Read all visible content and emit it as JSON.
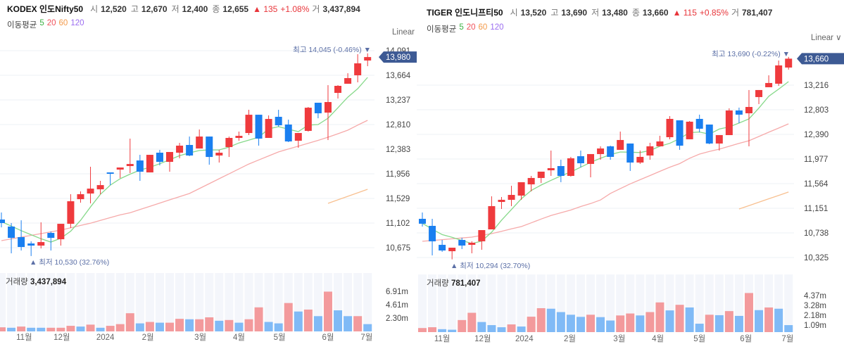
{
  "panels": [
    {
      "title": "KODEX 인도Nifty50",
      "open_label": "시",
      "open": "12,520",
      "high_label": "고",
      "high": "12,670",
      "low_label": "저",
      "low": "12,400",
      "close_label": "종",
      "close": "12,655",
      "change": "▲ 135",
      "change_pct": "+1.08%",
      "volume_label": "거",
      "volume": "3,437,894",
      "ma_label": "이동평균",
      "ma_periods": [
        "5",
        "20",
        "60",
        "120"
      ],
      "scale_mode": "Linear",
      "current_price": "13,980",
      "max_annotation": "최고 14,045 (-0.46%) ▼",
      "min_annotation": "▲ 최저 10,530 (32.76%)",
      "volume_title": "거래량",
      "volume_value": "3,437,894",
      "price_ticks": [
        "14,091",
        "13,664",
        "13,237",
        "12,810",
        "12,383",
        "11,956",
        "11,529",
        "11,102",
        "10,675"
      ],
      "volume_ticks": [
        "6.91m",
        "4.61m",
        "2.30m"
      ],
      "x_labels": [
        {
          "text": "11월",
          "at": 2.3
        },
        {
          "text": "12월",
          "at": 6.1
        },
        {
          "text": "2024",
          "at": 10.5
        },
        {
          "text": "2월",
          "at": 14.8
        },
        {
          "text": "3월",
          "at": 20.1
        },
        {
          "text": "4월",
          "at": 24
        },
        {
          "text": "5월",
          "at": 28.1
        },
        {
          "text": "6월",
          "at": 33
        },
        {
          "text": "7월",
          "at": 36.9
        }
      ],
      "chart_data": {
        "type": "candlestick",
        "ylim": [
          10675,
          14091
        ],
        "candles_ohlc": [
          [
            11163,
            11285,
            11028,
            11102
          ],
          [
            11041,
            11102,
            10577,
            10845
          ],
          [
            10858,
            11150,
            10626,
            10687
          ],
          [
            10748,
            10785,
            10530,
            10711
          ],
          [
            10711,
            11114,
            10662,
            10772
          ],
          [
            10931,
            10955,
            10626,
            10845
          ],
          [
            10821,
            11089,
            10711,
            11089
          ],
          [
            11089,
            11602,
            11016,
            11480
          ],
          [
            11516,
            11651,
            11455,
            11602
          ],
          [
            11614,
            12078,
            11443,
            11699
          ],
          [
            11687,
            11834,
            11602,
            11760
          ],
          [
            11980,
            11980,
            11760,
            11956
          ],
          [
            12029,
            12065,
            11882,
            12065
          ],
          [
            12090,
            12566,
            11968,
            12126
          ],
          [
            12187,
            12285,
            11834,
            11992
          ],
          [
            11980,
            12285,
            11980,
            12285
          ],
          [
            12322,
            12370,
            12102,
            12163
          ],
          [
            12163,
            12334,
            11992,
            12334
          ],
          [
            12322,
            12492,
            12224,
            12444
          ],
          [
            12456,
            12602,
            12261,
            12273
          ],
          [
            12395,
            12724,
            12395,
            12602
          ],
          [
            12602,
            12602,
            12114,
            12248
          ],
          [
            12273,
            12370,
            12151,
            12322
          ],
          [
            12419,
            12602,
            12248,
            12578
          ],
          [
            12578,
            12688,
            12529,
            12614
          ],
          [
            12663,
            13066,
            12627,
            12980
          ],
          [
            12980,
            12980,
            12444,
            12566
          ],
          [
            12578,
            12968,
            12578,
            12907
          ],
          [
            12944,
            13066,
            12773,
            12797
          ],
          [
            12810,
            12895,
            12505,
            12517
          ],
          [
            12529,
            12663,
            12407,
            12663
          ],
          [
            12700,
            13115,
            12688,
            13102
          ],
          [
            13188,
            13188,
            12919,
            13005
          ],
          [
            13017,
            13493,
            12541,
            13200
          ],
          [
            13359,
            13493,
            13261,
            13481
          ],
          [
            13517,
            13700,
            13517,
            13615
          ],
          [
            13664,
            14030,
            13542,
            13871
          ],
          [
            13920,
            14045,
            13822,
            13980
          ]
        ],
        "ma5": [
          11126,
          11050,
          10970,
          10900,
          10830,
          10772,
          10840,
          10960,
          11150,
          11380,
          11600,
          11760,
          11870,
          11950,
          12020,
          12070,
          12130,
          12200,
          12270,
          12320,
          12360,
          12370,
          12370,
          12420,
          12490,
          12540,
          12590,
          12736,
          12773,
          12730,
          12688,
          12800,
          12810,
          12920,
          13100,
          13285,
          13432,
          13627
        ],
        "ma20": [
          10797,
          10827,
          10858,
          10888,
          10919,
          10949,
          10980,
          11020,
          11060,
          11100,
          11148,
          11196,
          11244,
          11280,
          11336,
          11392,
          11448,
          11504,
          11560,
          11614,
          11700,
          11785,
          11870,
          11955,
          12040,
          12126,
          12196,
          12266,
          12336,
          12386,
          12436,
          12486,
          12536,
          12590,
          12650,
          12712,
          12800,
          12883
        ],
        "ma60": {
          "start_index": 33,
          "values": [
            11443,
            11504,
            11565,
            11626,
            11687
          ]
        },
        "volume_m": [
          0.72,
          0.64,
          0.85,
          0.64,
          0.64,
          0.64,
          0.64,
          0.98,
          0.85,
          1.19,
          0.64,
          0.98,
          1.28,
          3.19,
          1.41,
          1.66,
          1.53,
          1.53,
          2.21,
          2.13,
          2.13,
          2.47,
          1.87,
          2.0,
          1.53,
          2.13,
          4.22,
          1.66,
          1.41,
          4.98,
          3.49,
          3.83,
          2.68,
          6.98,
          3.7,
          2.68,
          2.68,
          1.28
        ],
        "volume_up": [
          1,
          0,
          1,
          0,
          0,
          1,
          1,
          1,
          0,
          1,
          0,
          1,
          1,
          1,
          0,
          1,
          0,
          1,
          1,
          0,
          1,
          1,
          0,
          1,
          0,
          1,
          1,
          0,
          0,
          1,
          0,
          1,
          0,
          1,
          0,
          0,
          1,
          0
        ]
      }
    },
    {
      "title": "TIGER 인도니프티50",
      "open_label": "시",
      "open": "13,520",
      "high_label": "고",
      "high": "13,690",
      "low_label": "저",
      "low": "13,480",
      "close_label": "종",
      "close": "13,660",
      "change": "▲ 115",
      "change_pct": "+0.85%",
      "volume_label": "거",
      "volume": "781,407",
      "ma_label": "이동평균",
      "ma_periods": [
        "5",
        "20",
        "60",
        "120"
      ],
      "scale_mode": "Linear ∨",
      "current_price": "13,660",
      "max_annotation": "최고 13,690 (-0.22%) ▼",
      "min_annotation": "▲ 최저 10,294 (32.70%)",
      "volume_title": "거래량",
      "volume_value": "781,407",
      "price_ticks": [
        "13,216",
        "12,803",
        "12,390",
        "11,977",
        "11,564",
        "11,151",
        "10,738",
        "10,325"
      ],
      "volume_ticks": [
        "4.37m",
        "3.28m",
        "2.18m",
        "1.09m"
      ],
      "x_labels": [
        {
          "text": "11월",
          "at": 2
        },
        {
          "text": "12월",
          "at": 6.1
        },
        {
          "text": "2024",
          "at": 10.3
        },
        {
          "text": "2월",
          "at": 14.9
        },
        {
          "text": "3월",
          "at": 19.9
        },
        {
          "text": "4월",
          "at": 23.8
        },
        {
          "text": "5월",
          "at": 28
        },
        {
          "text": "6월",
          "at": 32.7
        },
        {
          "text": "7월",
          "at": 36.9
        }
      ],
      "chart_data": {
        "type": "candlestick",
        "ylim": [
          10325,
          13660
        ],
        "candles_ohlc": [
          [
            10974,
            11080,
            10844,
            10892
          ],
          [
            10856,
            10974,
            10361,
            10597
          ],
          [
            10538,
            10620,
            10420,
            10443
          ],
          [
            10431,
            10490,
            10294,
            10490
          ],
          [
            10620,
            10656,
            10467,
            10526
          ],
          [
            10538,
            10597,
            10396,
            10573
          ],
          [
            10597,
            10785,
            10455,
            10785
          ],
          [
            10797,
            11352,
            10797,
            11187
          ],
          [
            11257,
            11340,
            11139,
            11293
          ],
          [
            11293,
            11529,
            11187,
            11375
          ],
          [
            11364,
            11588,
            11293,
            11588
          ],
          [
            11552,
            11694,
            11434,
            11659
          ],
          [
            11659,
            11765,
            11576,
            11765
          ],
          [
            11788,
            12119,
            11694,
            11824
          ],
          [
            11859,
            11965,
            11588,
            11694
          ],
          [
            11694,
            12013,
            11682,
            11989
          ],
          [
            12024,
            12119,
            11836,
            11906
          ],
          [
            11895,
            12060,
            11670,
            12060
          ],
          [
            12060,
            12190,
            11965,
            12154
          ],
          [
            12190,
            12201,
            11965,
            12013
          ],
          [
            12131,
            12437,
            12131,
            12296
          ],
          [
            12237,
            12237,
            11777,
            11918
          ],
          [
            11918,
            12119,
            11895,
            12013
          ],
          [
            12036,
            12249,
            11965,
            12190
          ],
          [
            12190,
            12367,
            12190,
            12272
          ],
          [
            12343,
            12697,
            12308,
            12650
          ],
          [
            12626,
            12626,
            12131,
            12201
          ],
          [
            12308,
            12614,
            12308,
            12603
          ],
          [
            12650,
            12721,
            12426,
            12485
          ],
          [
            12555,
            12555,
            12225,
            12237
          ],
          [
            12237,
            12378,
            12119,
            12378
          ],
          [
            12378,
            12827,
            12378,
            12791
          ],
          [
            12791,
            12839,
            12579,
            12721
          ],
          [
            12744,
            13134,
            12190,
            12850
          ],
          [
            13016,
            13134,
            12898,
            13134
          ],
          [
            13181,
            13381,
            13181,
            13252
          ],
          [
            13240,
            13629,
            13204,
            13547
          ],
          [
            13511,
            13690,
            13476,
            13660
          ]
        ],
        "ma5": [
          10900,
          10800,
          10710,
          10665,
          10610,
          10560,
          10600,
          10750,
          10951,
          11130,
          11310,
          11450,
          11540,
          11620,
          11694,
          11760,
          11840,
          11920,
          11990,
          12050,
          12095,
          12092,
          12085,
          12120,
          12190,
          12240,
          12320,
          12420,
          12430,
          12395,
          12480,
          12515,
          12580,
          12650,
          12830,
          13030,
          13150,
          13275
        ],
        "ma20": [
          10597,
          10611,
          10625,
          10639,
          10653,
          10667,
          10697,
          10726,
          10765,
          10805,
          10844,
          10907,
          10970,
          11030,
          11076,
          11122,
          11180,
          11230,
          11290,
          11400,
          11480,
          11560,
          11630,
          11700,
          11770,
          11840,
          11900,
          11990,
          12060,
          12105,
          12142,
          12190,
          12240,
          12284,
          12355,
          12426,
          12496,
          12567
        ],
        "ma60": {
          "start_index": 32,
          "values": [
            11139,
            11196,
            11253,
            11310,
            11367,
            11423
          ]
        },
        "volume_m": [
          0.46,
          0.55,
          0.33,
          0.27,
          1.36,
          2.18,
          1.14,
          0.79,
          0.55,
          0.87,
          0.63,
          1.74,
          2.7,
          2.64,
          2.26,
          1.96,
          1.72,
          1.96,
          1.69,
          1.31,
          1.88,
          2.1,
          1.88,
          2.26,
          3.35,
          2.45,
          3.08,
          2.78,
          0.95,
          1.96,
          1.91,
          2.37,
          1.83,
          4.41,
          2.48,
          2.78,
          2.64,
          0.79
        ],
        "volume_up": [
          1,
          1,
          0,
          0,
          1,
          1,
          0,
          0,
          0,
          1,
          0,
          1,
          1,
          0,
          0,
          0,
          0,
          1,
          0,
          0,
          1,
          1,
          0,
          1,
          1,
          0,
          1,
          0,
          0,
          1,
          0,
          1,
          0,
          1,
          0,
          1,
          0,
          0
        ]
      }
    }
  ],
  "colors": {
    "up": "#ef3a3d",
    "down": "#1a7ff0",
    "volume_up": "#f39a9c",
    "volume_down": "#80baf6",
    "ma5": "#86d98a",
    "ma20": "#f6aaaa",
    "ma60": "#f8c090",
    "price_tag": "#3d5a94",
    "annotation": "#5b6fa6",
    "grid": "#eef0f5",
    "volume_bg": "#f4f6fb"
  }
}
